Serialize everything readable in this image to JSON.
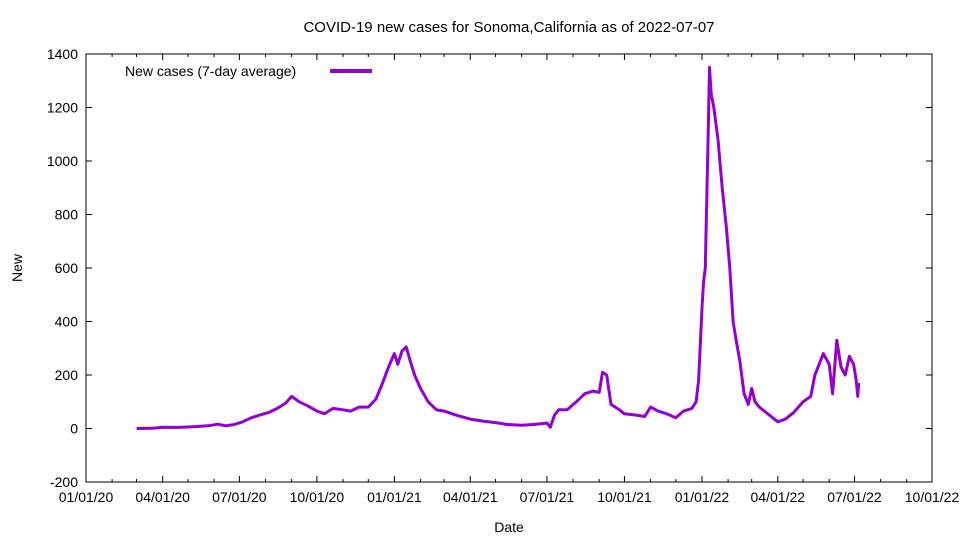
{
  "chart_data": {
    "type": "line",
    "title": "COVID-19 new cases for Sonoma,California as of 2022-07-07",
    "xlabel": "Date",
    "ylabel": "New",
    "xlim": [
      "2020-01-01",
      "2022-10-01"
    ],
    "ylim": [
      -200,
      1400
    ],
    "x_ticks": [
      {
        "date": "2020-01-01",
        "label": "01/01/20"
      },
      {
        "date": "2020-04-01",
        "label": "04/01/20"
      },
      {
        "date": "2020-07-01",
        "label": "07/01/20"
      },
      {
        "date": "2020-10-01",
        "label": "10/01/20"
      },
      {
        "date": "2021-01-01",
        "label": "01/01/21"
      },
      {
        "date": "2021-04-01",
        "label": "04/01/21"
      },
      {
        "date": "2021-07-01",
        "label": "07/01/21"
      },
      {
        "date": "2021-10-01",
        "label": "10/01/21"
      },
      {
        "date": "2022-01-01",
        "label": "01/01/22"
      },
      {
        "date": "2022-04-01",
        "label": "04/01/22"
      },
      {
        "date": "2022-07-01",
        "label": "07/01/22"
      },
      {
        "date": "2022-10-01",
        "label": "10/01/22"
      }
    ],
    "y_ticks": [
      -200,
      0,
      200,
      400,
      600,
      800,
      1000,
      1200,
      1400
    ],
    "grid": false,
    "legend": "top-left",
    "series": [
      {
        "name": "New cases (7-day average)",
        "color": "#9400d3",
        "points": [
          [
            "2020-03-01",
            0
          ],
          [
            "2020-03-20",
            1
          ],
          [
            "2020-04-01",
            5
          ],
          [
            "2020-04-20",
            4
          ],
          [
            "2020-05-10",
            7
          ],
          [
            "2020-05-25",
            10
          ],
          [
            "2020-06-05",
            16
          ],
          [
            "2020-06-15",
            10
          ],
          [
            "2020-06-25",
            15
          ],
          [
            "2020-07-05",
            25
          ],
          [
            "2020-07-15",
            40
          ],
          [
            "2020-07-25",
            50
          ],
          [
            "2020-08-05",
            60
          ],
          [
            "2020-08-15",
            75
          ],
          [
            "2020-08-25",
            95
          ],
          [
            "2020-09-01",
            120
          ],
          [
            "2020-09-10",
            100
          ],
          [
            "2020-09-20",
            85
          ],
          [
            "2020-10-01",
            65
          ],
          [
            "2020-10-10",
            55
          ],
          [
            "2020-10-20",
            75
          ],
          [
            "2020-11-01",
            70
          ],
          [
            "2020-11-10",
            65
          ],
          [
            "2020-11-20",
            80
          ],
          [
            "2020-12-01",
            80
          ],
          [
            "2020-12-10",
            110
          ],
          [
            "2020-12-18",
            170
          ],
          [
            "2020-12-25",
            230
          ],
          [
            "2021-01-01",
            280
          ],
          [
            "2021-01-05",
            240
          ],
          [
            "2021-01-10",
            290
          ],
          [
            "2021-01-15",
            305
          ],
          [
            "2021-01-20",
            250
          ],
          [
            "2021-01-25",
            200
          ],
          [
            "2021-02-01",
            150
          ],
          [
            "2021-02-10",
            100
          ],
          [
            "2021-02-20",
            70
          ],
          [
            "2021-03-01",
            65
          ],
          [
            "2021-03-15",
            50
          ],
          [
            "2021-04-01",
            35
          ],
          [
            "2021-04-15",
            28
          ],
          [
            "2021-05-01",
            22
          ],
          [
            "2021-05-15",
            15
          ],
          [
            "2021-06-01",
            12
          ],
          [
            "2021-06-15",
            15
          ],
          [
            "2021-07-01",
            20
          ],
          [
            "2021-07-05",
            5
          ],
          [
            "2021-07-10",
            50
          ],
          [
            "2021-07-15",
            70
          ],
          [
            "2021-07-25",
            70
          ],
          [
            "2021-08-05",
            100
          ],
          [
            "2021-08-15",
            130
          ],
          [
            "2021-08-25",
            140
          ],
          [
            "2021-09-01",
            135
          ],
          [
            "2021-09-05",
            210
          ],
          [
            "2021-09-10",
            200
          ],
          [
            "2021-09-15",
            90
          ],
          [
            "2021-09-25",
            70
          ],
          [
            "2021-10-01",
            55
          ],
          [
            "2021-10-15",
            50
          ],
          [
            "2021-10-25",
            45
          ],
          [
            "2021-11-01",
            80
          ],
          [
            "2021-11-10",
            65
          ],
          [
            "2021-11-20",
            55
          ],
          [
            "2021-12-01",
            40
          ],
          [
            "2021-12-10",
            65
          ],
          [
            "2021-12-20",
            75
          ],
          [
            "2021-12-25",
            100
          ],
          [
            "2021-12-28",
            180
          ],
          [
            "2022-01-01",
            450
          ],
          [
            "2022-01-03",
            550
          ],
          [
            "2022-01-05",
            600
          ],
          [
            "2022-01-07",
            900
          ],
          [
            "2022-01-08",
            1050
          ],
          [
            "2022-01-10",
            1350
          ],
          [
            "2022-01-12",
            1250
          ],
          [
            "2022-01-15",
            1200
          ],
          [
            "2022-01-20",
            1080
          ],
          [
            "2022-01-25",
            900
          ],
          [
            "2022-01-30",
            750
          ],
          [
            "2022-02-03",
            600
          ],
          [
            "2022-02-07",
            400
          ],
          [
            "2022-02-10",
            340
          ],
          [
            "2022-02-15",
            250
          ],
          [
            "2022-02-20",
            130
          ],
          [
            "2022-02-25",
            90
          ],
          [
            "2022-03-01",
            150
          ],
          [
            "2022-03-05",
            100
          ],
          [
            "2022-03-10",
            80
          ],
          [
            "2022-03-20",
            55
          ],
          [
            "2022-04-01",
            25
          ],
          [
            "2022-04-10",
            35
          ],
          [
            "2022-04-20",
            60
          ],
          [
            "2022-05-01",
            100
          ],
          [
            "2022-05-10",
            120
          ],
          [
            "2022-05-15",
            200
          ],
          [
            "2022-05-25",
            280
          ],
          [
            "2022-06-01",
            240
          ],
          [
            "2022-06-05",
            130
          ],
          [
            "2022-06-10",
            330
          ],
          [
            "2022-06-15",
            230
          ],
          [
            "2022-06-20",
            200
          ],
          [
            "2022-06-25",
            270
          ],
          [
            "2022-06-30",
            240
          ],
          [
            "2022-07-03",
            180
          ],
          [
            "2022-07-05",
            120
          ],
          [
            "2022-07-06",
            170
          ]
        ]
      }
    ]
  }
}
